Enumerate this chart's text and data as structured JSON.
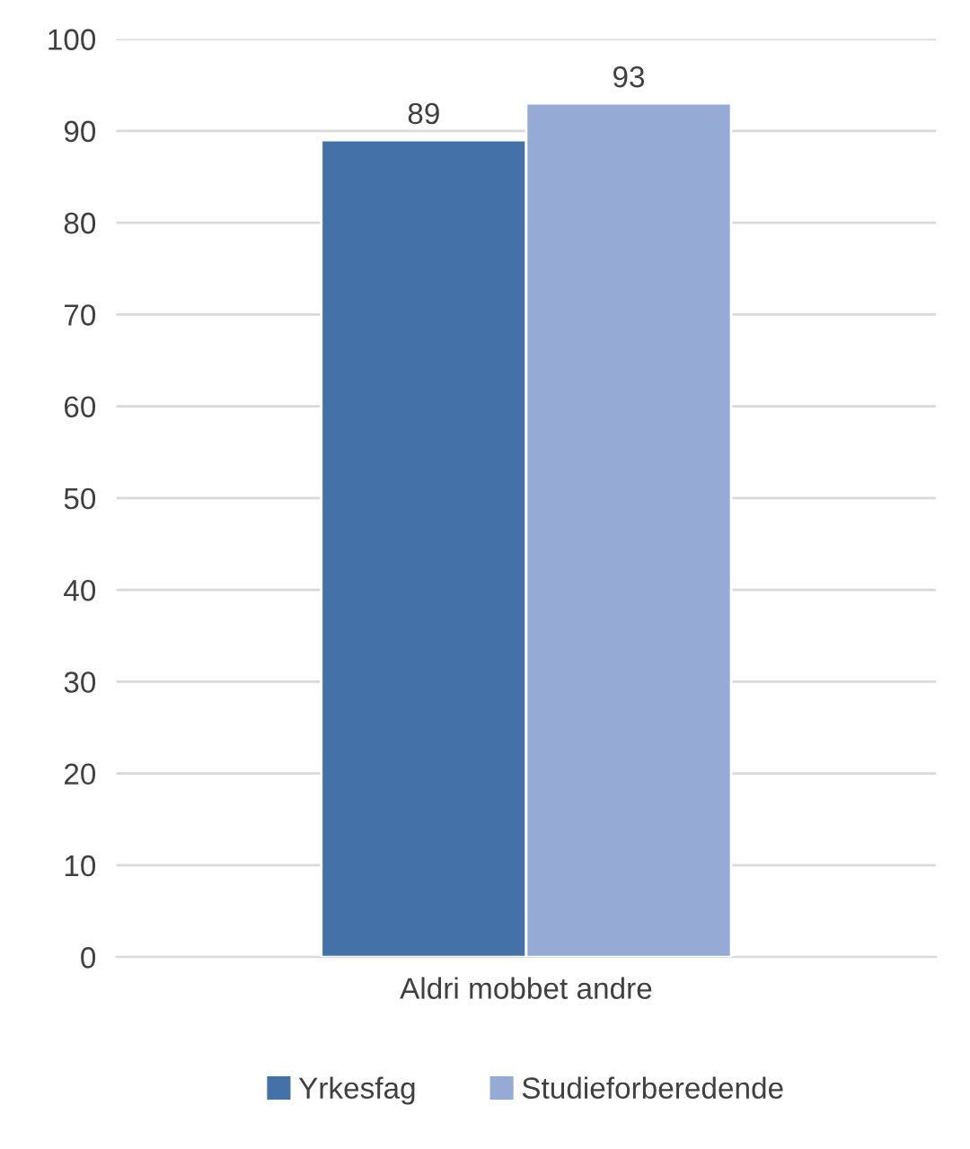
{
  "chart_data": {
    "type": "bar",
    "categories": [
      "Aldri mobbet andre"
    ],
    "series": [
      {
        "name": "Yrkesfag",
        "color": "#4472a8",
        "values": [
          89
        ]
      },
      {
        "name": "Studieforberedende",
        "color": "#95abd5",
        "values": [
          93
        ]
      }
    ],
    "ylim": [
      0,
      100
    ],
    "yticks": [
      0,
      10,
      20,
      30,
      40,
      50,
      60,
      70,
      80,
      90,
      100
    ],
    "grid": "y",
    "legend": "bottom",
    "data_labels": true
  }
}
